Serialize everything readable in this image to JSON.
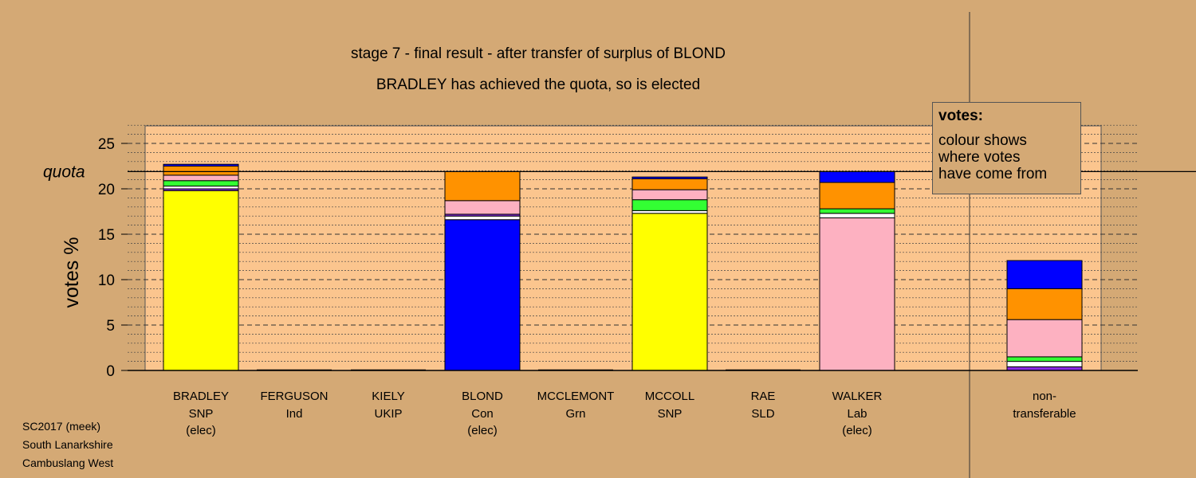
{
  "title_line1": "stage 7 - final result - after transfer of surplus of BLOND",
  "title_line2": "BRADLEY has achieved the quota, so is elected",
  "footer": [
    "SC2017 (meek)",
    "South Lanarkshire",
    "Cambuslang West"
  ],
  "legend": {
    "title": "votes:",
    "lines": [
      "colour shows",
      "where votes",
      "have come from"
    ]
  },
  "colors": {
    "page_bg": "#d4a975",
    "plot_bg": "#fbc58e",
    "SNP": "#ffff00",
    "Con": "#0000ff",
    "Lab": "#fdb1c1",
    "Grn": "#33ff33",
    "SLD": "#ff9200",
    "UKIP": "#8a2be2",
    "Ind": "#ffffff"
  },
  "chart_data": {
    "type": "bar",
    "stacked": true,
    "ylabel": "votes %",
    "quota_label": "quota",
    "quota": 21.9,
    "ylim": [
      0,
      27
    ],
    "yticks": [
      0,
      5,
      10,
      15,
      20,
      25
    ],
    "categories": [
      {
        "name": "BRADLEY",
        "party": "SNP",
        "status": "(elec)"
      },
      {
        "name": "FERGUSON",
        "party": "Ind",
        "status": ""
      },
      {
        "name": "KIELY",
        "party": "UKIP",
        "status": ""
      },
      {
        "name": "BLOND",
        "party": "Con",
        "status": "(elec)"
      },
      {
        "name": "MCCLEMONT",
        "party": "Grn",
        "status": ""
      },
      {
        "name": "MCCOLL",
        "party": "SNP",
        "status": ""
      },
      {
        "name": "RAE",
        "party": "SLD",
        "status": ""
      },
      {
        "name": "WALKER",
        "party": "Lab",
        "status": "(elec)"
      },
      {
        "name": "non-",
        "party": "transferable",
        "status": ""
      }
    ],
    "bars": [
      [
        {
          "color": "#ffff00",
          "value": 19.8
        },
        {
          "color": "#8a2be2",
          "value": 0.2
        },
        {
          "color": "#ffffff",
          "value": 0.3
        },
        {
          "color": "#33ff33",
          "value": 0.6
        },
        {
          "color": "#fdb1c1",
          "value": 0.6
        },
        {
          "color": "#ff9200",
          "value": 1.0
        },
        {
          "color": "#0000ff",
          "value": 0.2
        }
      ],
      [],
      [],
      [
        {
          "color": "#0000ff",
          "value": 16.6
        },
        {
          "color": "#ffffff",
          "value": 0.4
        },
        {
          "color": "#8a2be2",
          "value": 0.2
        },
        {
          "color": "#fdb1c1",
          "value": 1.5
        },
        {
          "color": "#ff9200",
          "value": 3.2
        }
      ],
      [],
      [
        {
          "color": "#ffff00",
          "value": 17.3
        },
        {
          "color": "#ffffff",
          "value": 0.3
        },
        {
          "color": "#33ff33",
          "value": 1.2
        },
        {
          "color": "#fdb1c1",
          "value": 1.1
        },
        {
          "color": "#ff9200",
          "value": 1.2
        },
        {
          "color": "#0000ff",
          "value": 0.2
        }
      ],
      [],
      [
        {
          "color": "#fdb1c1",
          "value": 16.8
        },
        {
          "color": "#ffffff",
          "value": 0.5
        },
        {
          "color": "#33ff33",
          "value": 0.5
        },
        {
          "color": "#ff9200",
          "value": 2.9
        },
        {
          "color": "#0000ff",
          "value": 1.2
        }
      ],
      [
        {
          "color": "#8a2be2",
          "value": 0.4
        },
        {
          "color": "#ffffff",
          "value": 0.6
        },
        {
          "color": "#33ff33",
          "value": 0.5
        },
        {
          "color": "#fdb1c1",
          "value": 4.1
        },
        {
          "color": "#ff9200",
          "value": 3.4
        },
        {
          "color": "#0000ff",
          "value": 3.1
        }
      ]
    ]
  }
}
